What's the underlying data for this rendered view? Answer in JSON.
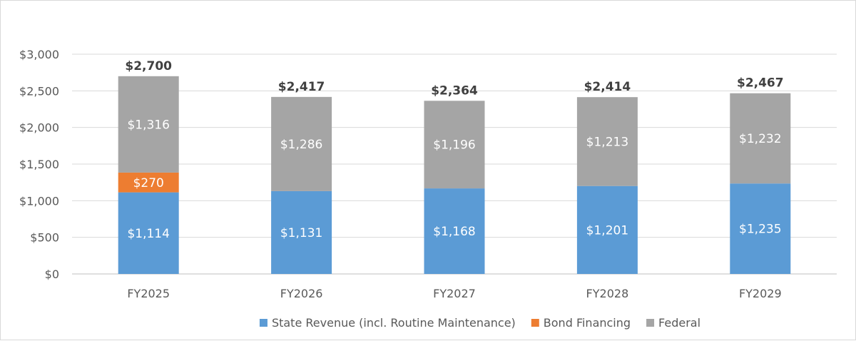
{
  "chart_data": {
    "type": "bar",
    "stacked": true,
    "categories": [
      "FY2025",
      "FY2026",
      "FY2027",
      "FY2028",
      "FY2029"
    ],
    "series": [
      {
        "name": "State Revenue (incl. Routine Maintenance)",
        "color": "#5b9bd5",
        "values": [
          1114,
          1131,
          1168,
          1201,
          1235
        ],
        "labels": [
          "$1,114",
          "$1,131",
          "$1,168",
          "$1,201",
          "$1,235"
        ]
      },
      {
        "name": "Bond Financing",
        "color": "#ed7d31",
        "values": [
          270,
          0,
          0,
          0,
          0
        ],
        "labels": [
          "$270",
          "",
          "",
          "",
          ""
        ]
      },
      {
        "name": "Federal",
        "color": "#a5a5a5",
        "values": [
          1316,
          1286,
          1196,
          1213,
          1232
        ],
        "labels": [
          "$1,316",
          "$1,286",
          "$1,196",
          "$1,213",
          "$1,232"
        ]
      }
    ],
    "totals": [
      2700,
      2417,
      2364,
      2414,
      2467
    ],
    "total_labels": [
      "$2,700",
      "$2,417",
      "$2,364",
      "$2,414",
      "$2,467"
    ],
    "ylim": [
      0,
      3000
    ],
    "yticks": [
      0,
      500,
      1000,
      1500,
      2000,
      2500,
      3000
    ],
    "ytick_labels": [
      "$0",
      "$500",
      "$1,000",
      "$1,500",
      "$2,000",
      "$2,500",
      "$3,000"
    ],
    "grid": true,
    "legend_position": "bottom",
    "title": "",
    "xlabel": "",
    "ylabel": ""
  }
}
